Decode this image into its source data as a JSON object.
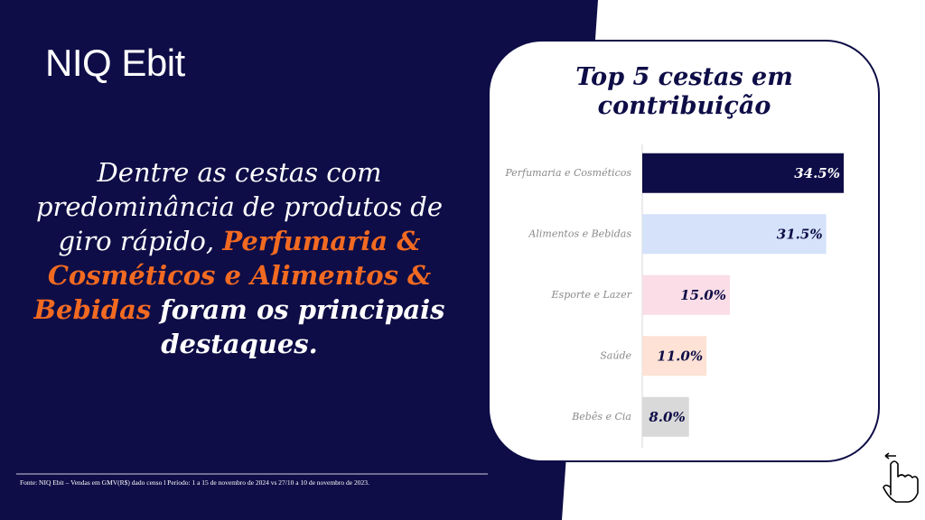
{
  "logo": "NIQ Ebit",
  "headline": {
    "parts": [
      "Dentre as cestas com predominância de produtos de giro rápido, ",
      "Perfumaria & Cosméticos e Alimentos & Bebidas",
      " foram os principais destaques."
    ]
  },
  "footnote": "Fonte: NIQ Ebit – Vendas em GMV(R$) dado censo l Período: 1 a 15 de novembro de 2024 vs 27/10 a 10 de novembro de 2023.",
  "chart_data": {
    "type": "hbar",
    "title": "Top 5 cestas em contribuição",
    "categories": [
      "Perfumaria e Cosméticos",
      "Alimentos e Bebidas",
      "Esporte e Lazer",
      "Saúde",
      "Bebês e Cia"
    ],
    "values": [
      34.5,
      31.5,
      15.0,
      11.0,
      8.0
    ],
    "value_labels": [
      "34.5%",
      "31.5%",
      "15.0%",
      "11.0%",
      "8.0%"
    ],
    "colors": [
      "#0e0d47",
      "#d5e2fa",
      "#fadde7",
      "#fde2d5",
      "#d9d9d9"
    ]
  }
}
